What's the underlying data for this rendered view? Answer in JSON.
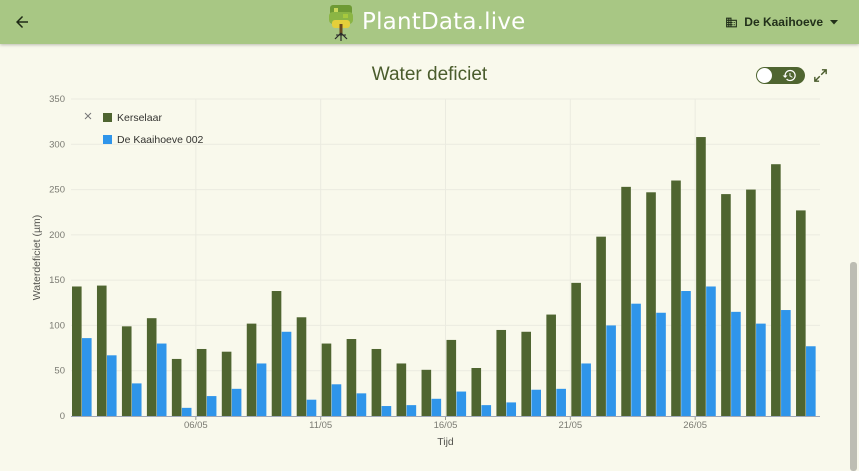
{
  "header": {
    "brand": "PlantData.live",
    "location": "De Kaaihoeve",
    "back_icon": "arrow-left-icon",
    "location_icon": "building-icon",
    "dropdown_icon": "caret-down-icon",
    "background_color": "#a8c784"
  },
  "card": {
    "title": "Water deficiet",
    "history_toggle_icon": "history-icon",
    "expand_icon": "expand-icon"
  },
  "chart_data": {
    "type": "bar",
    "xlabel": "Tijd",
    "ylabel": "Waterdeficiet (µm)",
    "ylim": [
      0,
      350
    ],
    "yticks": [
      0,
      50,
      100,
      150,
      200,
      250,
      300,
      350
    ],
    "grid": true,
    "legend_position": "top-left",
    "x_tick_labels": [
      {
        "index": 4,
        "label": "06/05"
      },
      {
        "index": 9,
        "label": "11/05"
      },
      {
        "index": 14,
        "label": "16/05"
      },
      {
        "index": 19,
        "label": "21/05"
      },
      {
        "index": 24,
        "label": "26/05"
      }
    ],
    "series": [
      {
        "name": "Kerselaar",
        "color": "#4f6530",
        "values": [
          143,
          144,
          99,
          108,
          63,
          74,
          71,
          102,
          138,
          109,
          80,
          85,
          74,
          58,
          51,
          84,
          53,
          95,
          93,
          112,
          147,
          198,
          253,
          247,
          260,
          308,
          245,
          250,
          278,
          227
        ]
      },
      {
        "name": "De Kaaihoeve 002",
        "color": "#2f95ea",
        "values": [
          86,
          67,
          36,
          80,
          9,
          22,
          30,
          58,
          93,
          18,
          35,
          25,
          11,
          12,
          19,
          27,
          12,
          15,
          29,
          30,
          58,
          100,
          124,
          114,
          138,
          143,
          115,
          102,
          117,
          77
        ]
      }
    ]
  }
}
